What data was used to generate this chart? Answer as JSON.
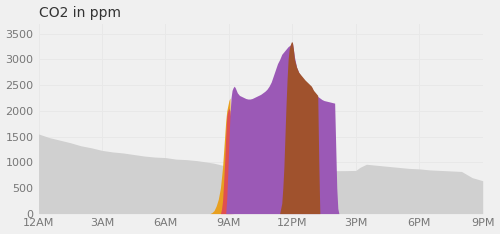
{
  "title": "CO2 in ppm",
  "xlim": [
    0,
    21
  ],
  "ylim": [
    0,
    3700
  ],
  "xtick_positions": [
    0,
    3,
    6,
    9,
    12,
    15,
    18,
    21
  ],
  "xtick_labels": [
    "12AM",
    "3AM",
    "6AM",
    "9AM",
    "12PM",
    "3PM",
    "6PM",
    "9PM"
  ],
  "ytick_positions": [
    0,
    500,
    1000,
    1500,
    2000,
    2500,
    3000,
    3500
  ],
  "background_color": "#f0f0f0",
  "gray_area": {
    "x": [
      0,
      0.5,
      1,
      1.5,
      2,
      2.5,
      3,
      3.5,
      4,
      4.5,
      5,
      5.5,
      6,
      6.5,
      7,
      7.5,
      8,
      8.3,
      8.6,
      9,
      9.5,
      10,
      10.5,
      11,
      11.5,
      12,
      12.5,
      13,
      13.5,
      14,
      14.5,
      15,
      15.2,
      15.5,
      16,
      16.5,
      17,
      17.5,
      18,
      18.5,
      19,
      19.5,
      20,
      20.5,
      21
    ],
    "y": [
      1550,
      1480,
      1430,
      1380,
      1320,
      1280,
      1230,
      1200,
      1180,
      1150,
      1120,
      1100,
      1090,
      1060,
      1050,
      1030,
      1000,
      980,
      950,
      910,
      890,
      870,
      860,
      855,
      850,
      845,
      840,
      838,
      835,
      835,
      836,
      840,
      900,
      960,
      940,
      920,
      900,
      880,
      870,
      850,
      840,
      830,
      820,
      700,
      640
    ],
    "color": "#d0d0d0"
  },
  "orange_area": {
    "x": [
      8.1,
      8.2,
      8.3,
      8.4,
      8.5,
      8.6,
      8.7,
      8.75,
      8.8,
      8.85,
      8.9,
      8.95,
      9.0,
      9.05,
      9.1
    ],
    "y": [
      0,
      20,
      60,
      150,
      280,
      500,
      900,
      1200,
      1500,
      1800,
      2000,
      2100,
      2200,
      2250,
      0
    ],
    "color": "#e8a020"
  },
  "red_area": {
    "x": [
      8.6,
      8.65,
      8.7,
      8.75,
      8.8,
      8.85,
      8.9,
      8.95,
      9.0,
      9.05,
      9.1,
      9.15,
      9.2
    ],
    "y": [
      0,
      80,
      250,
      600,
      1000,
      1500,
      1900,
      2000,
      2050,
      2000,
      1800,
      800,
      0
    ],
    "color": "#e05050"
  },
  "purple_area": {
    "x": [
      8.85,
      8.9,
      8.95,
      9.0,
      9.05,
      9.1,
      9.15,
      9.2,
      9.25,
      9.3,
      9.4,
      9.5,
      9.6,
      9.7,
      9.8,
      9.9,
      10.0,
      10.1,
      10.2,
      10.3,
      10.4,
      10.5,
      10.6,
      10.7,
      10.8,
      10.9,
      11.0,
      11.1,
      11.2,
      11.3,
      11.4,
      11.5,
      11.6,
      11.7,
      11.8,
      11.9,
      12.0,
      12.1,
      12.2,
      12.3,
      12.4,
      12.5,
      12.6,
      12.7,
      12.8,
      12.9,
      13.0,
      13.1,
      13.2,
      13.3,
      13.4,
      13.5,
      13.6,
      13.7,
      13.8,
      13.9,
      14.0,
      14.1,
      14.15,
      14.2
    ],
    "y": [
      0,
      300,
      800,
      1400,
      1900,
      2250,
      2400,
      2450,
      2480,
      2450,
      2350,
      2300,
      2280,
      2260,
      2240,
      2230,
      2230,
      2240,
      2260,
      2280,
      2300,
      2320,
      2350,
      2380,
      2420,
      2480,
      2560,
      2680,
      2800,
      2920,
      3000,
      3100,
      3150,
      3200,
      3250,
      3280,
      3340,
      3050,
      2850,
      2750,
      2680,
      2620,
      2580,
      2540,
      2500,
      2460,
      2380,
      2300,
      2280,
      2250,
      2220,
      2200,
      2190,
      2180,
      2170,
      2160,
      2150,
      500,
      100,
      0
    ],
    "color": "#9b59b6"
  },
  "brown_area": {
    "x": [
      11.4,
      11.5,
      11.55,
      11.6,
      11.65,
      11.7,
      11.75,
      11.8,
      11.85,
      11.9,
      11.95,
      12.0,
      12.05,
      12.1,
      12.2,
      12.3,
      12.4,
      12.5,
      12.6,
      12.7,
      12.8,
      12.9,
      13.0,
      13.1,
      13.2,
      13.25,
      13.3
    ],
    "y": [
      0,
      200,
      500,
      900,
      1500,
      2100,
      2600,
      3000,
      3200,
      3280,
      3340,
      3340,
      3200,
      3000,
      2850,
      2750,
      2700,
      2650,
      2600,
      2560,
      2520,
      2480,
      2400,
      2350,
      2300,
      1000,
      0
    ],
    "color": "#a0522d"
  },
  "grid_color": "#e8e8e8",
  "title_fontsize": 10,
  "tick_fontsize": 8
}
